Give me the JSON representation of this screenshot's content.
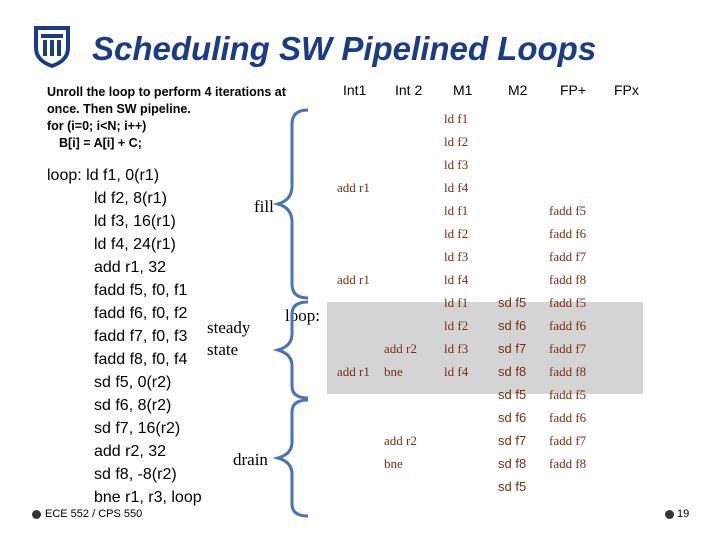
{
  "title": "Scheduling SW Pipelined Loops",
  "intro": [
    "Unroll the loop to perform 4 iterations at",
    "once. Then SW pipeline.",
    "for (i=0; i<N; i++)",
    "B[i] = A[i] + C;"
  ],
  "code": [
    "loop: ld f1, 0(r1)",
    "ld f2, 8(r1)",
    "ld f3, 16(r1)",
    "ld f4, 24(r1)",
    "add r1, 32",
    "fadd f5, f0, f1",
    "fadd f6, f0, f2",
    "fadd f7, f0, f3",
    "fadd f8, f0, f4",
    "sd f5, 0(r2)",
    "sd f6, 8(r2)",
    "sd f7, 16(r2)",
    "add r2, 32",
    "sd f8, -8(r2)",
    "bne r1, r3, loop"
  ],
  "labels": {
    "fill": "fill",
    "steady": "steady",
    "state": "state",
    "drain": "drain",
    "loop": "loop:"
  },
  "headers": [
    "Int1",
    "Int 2",
    "M1",
    "M2",
    "FP+",
    "FPx"
  ],
  "rows": [
    {
      "int1": "",
      "int2": "",
      "m1": "ld f1",
      "m2": "",
      "fp": ""
    },
    {
      "int1": "",
      "int2": "",
      "m1": "ld f2",
      "m2": "",
      "fp": ""
    },
    {
      "int1": "",
      "int2": "",
      "m1": "ld f3",
      "m2": "",
      "fp": ""
    },
    {
      "int1": "add r1",
      "int2": "",
      "m1": "ld f4",
      "m2": "",
      "fp": ""
    },
    {
      "int1": "",
      "int2": "",
      "m1": "ld f1",
      "m2": "",
      "fp": "fadd f5"
    },
    {
      "int1": "",
      "int2": "",
      "m1": "ld f2",
      "m2": "",
      "fp": "fadd f6"
    },
    {
      "int1": "",
      "int2": "",
      "m1": "ld f3",
      "m2": "",
      "fp": "fadd f7"
    },
    {
      "int1": "add r1",
      "int2": "",
      "m1": "ld f4",
      "m2": "",
      "fp": "fadd f8"
    },
    {
      "int1": "",
      "int2": "",
      "m1": "ld f1",
      "m2": "sd f5",
      "fp": "fadd f5"
    },
    {
      "int1": "",
      "int2": "",
      "m1": "ld f2",
      "m2": "sd f6",
      "fp": "fadd f6"
    },
    {
      "int1": "",
      "int2": "add r2",
      "m1": "ld f3",
      "m2": "sd f7",
      "fp": "fadd f7"
    },
    {
      "int1": "add r1",
      "int2": "bne",
      "m1": "ld f4",
      "m2": "sd f8",
      "fp": "fadd f8"
    },
    {
      "int1": "",
      "int2": "",
      "m1": "",
      "m2": "sd f5",
      "fp": "fadd f5"
    },
    {
      "int1": "",
      "int2": "",
      "m1": "",
      "m2": "sd f6",
      "fp": "fadd f6"
    },
    {
      "int1": "",
      "int2": "add r2",
      "m1": "",
      "m2": "sd f7",
      "fp": "fadd f7"
    },
    {
      "int1": "",
      "int2": "bne",
      "m1": "",
      "m2": "sd f8",
      "fp": "fadd f8"
    },
    {
      "int1": "",
      "int2": "",
      "m1": "",
      "m2": "sd f5",
      "fp": ""
    }
  ],
  "footer": {
    "course": "ECE 552 / CPS 550",
    "page": "19"
  },
  "colors": {
    "title": "#1a3a8a",
    "cell": "#7a2e0e",
    "bracket": "#4a72b8"
  }
}
